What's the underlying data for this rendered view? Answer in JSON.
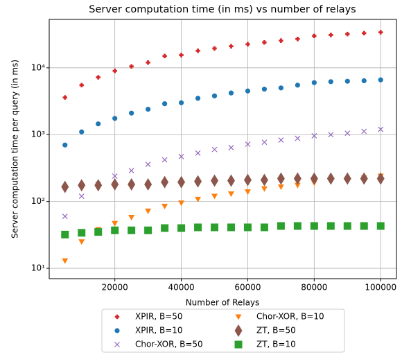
{
  "chart_data": {
    "type": "scatter",
    "title": "Server computation time (in ms) vs number of relays",
    "xlabel": "Number of Relays",
    "ylabel": "Server computation time per query (in ms)",
    "x": [
      5000,
      10000,
      15000,
      20000,
      25000,
      30000,
      35000,
      40000,
      45000,
      50000,
      55000,
      60000,
      65000,
      70000,
      75000,
      80000,
      85000,
      90000,
      95000,
      100000
    ],
    "series": [
      {
        "name": "XPIR, B=50",
        "color": "#d62728",
        "marker": "plus",
        "values": [
          3600,
          5500,
          7200,
          9000,
          10500,
          12000,
          15000,
          15500,
          18000,
          19500,
          21000,
          22500,
          24000,
          25500,
          27000,
          30000,
          31000,
          32000,
          33000,
          34000
        ]
      },
      {
        "name": "XPIR, B=10",
        "color": "#1f77b4",
        "marker": "circle",
        "values": [
          700,
          1100,
          1450,
          1750,
          2100,
          2400,
          2900,
          3000,
          3500,
          3800,
          4200,
          4500,
          4800,
          5000,
          5500,
          6000,
          6200,
          6300,
          6400,
          6600
        ]
      },
      {
        "name": "Chor-XOR, B=50",
        "color": "#9467bd",
        "marker": "x",
        "values": [
          60,
          120,
          180,
          240,
          290,
          360,
          420,
          470,
          530,
          600,
          640,
          720,
          770,
          830,
          880,
          960,
          1000,
          1050,
          1120,
          1200
        ]
      },
      {
        "name": "Chor-XOR, B=10",
        "color": "#ff7f0e",
        "marker": "triangle-down",
        "values": [
          13,
          25,
          38,
          47,
          58,
          72,
          85,
          95,
          108,
          120,
          130,
          140,
          155,
          165,
          175,
          190,
          200,
          210,
          225,
          240
        ]
      },
      {
        "name": "ZT, B=50",
        "color": "#8c564b",
        "marker": "diamond",
        "values": [
          165,
          175,
          175,
          180,
          180,
          180,
          195,
          195,
          200,
          205,
          205,
          210,
          210,
          220,
          220,
          220,
          220,
          220,
          220,
          220
        ]
      },
      {
        "name": "ZT, B=10",
        "color": "#2ca02c",
        "marker": "square",
        "values": [
          32,
          34,
          35,
          37,
          37,
          37,
          40,
          40,
          41,
          41,
          41,
          41,
          41,
          43,
          43,
          43,
          43,
          43,
          43,
          43
        ]
      }
    ],
    "xlim": [
      250,
      104750
    ],
    "ylim": [
      7,
      53000
    ],
    "ylog": true,
    "xticks": [
      20000,
      40000,
      60000,
      80000,
      100000
    ],
    "yticks": [
      {
        "value": 10,
        "label": "10¹"
      },
      {
        "value": 100,
        "label": "10²"
      },
      {
        "value": 1000,
        "label": "10³"
      },
      {
        "value": 10000,
        "label": "10⁴"
      }
    ],
    "grid": true,
    "legend": "bottom"
  }
}
